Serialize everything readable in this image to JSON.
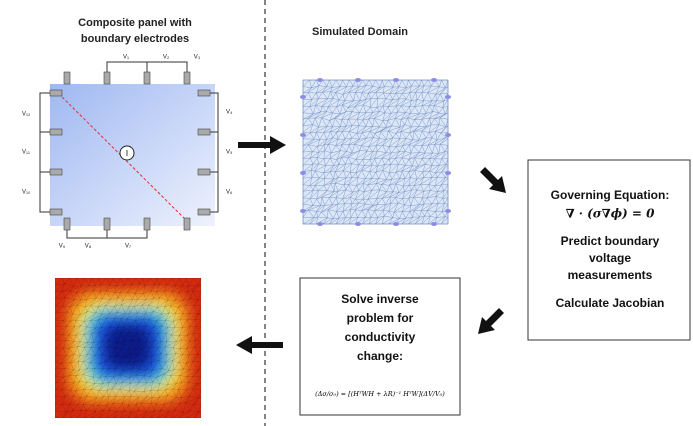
{
  "panel": {
    "title": [
      "Composite panel with",
      "boundary electrodes"
    ],
    "voltage_labels": [
      "V₁",
      "V₂",
      "V₃",
      "V₄",
      "V₅",
      "V₆",
      "V₇",
      "V₈",
      "V₉",
      "V₁₀",
      "V₁₁",
      "V₁₂"
    ],
    "current_label": "I"
  },
  "domain": {
    "title": "Simulated Domain"
  },
  "forward_box": {
    "heading": "Governing Equation:",
    "equation": "∇ · (σ∇ϕ) = 0",
    "step1": [
      "Predict boundary",
      "voltage",
      "measurements"
    ],
    "step2": "Calculate Jacobian"
  },
  "inverse_box": {
    "text": [
      "Solve inverse",
      "problem for",
      "conductivity",
      "change:"
    ],
    "equation": "(Δσ/σ₀) = [(HᵀWH + λR)⁻¹ HᵀW](ΔV/V₀)"
  }
}
